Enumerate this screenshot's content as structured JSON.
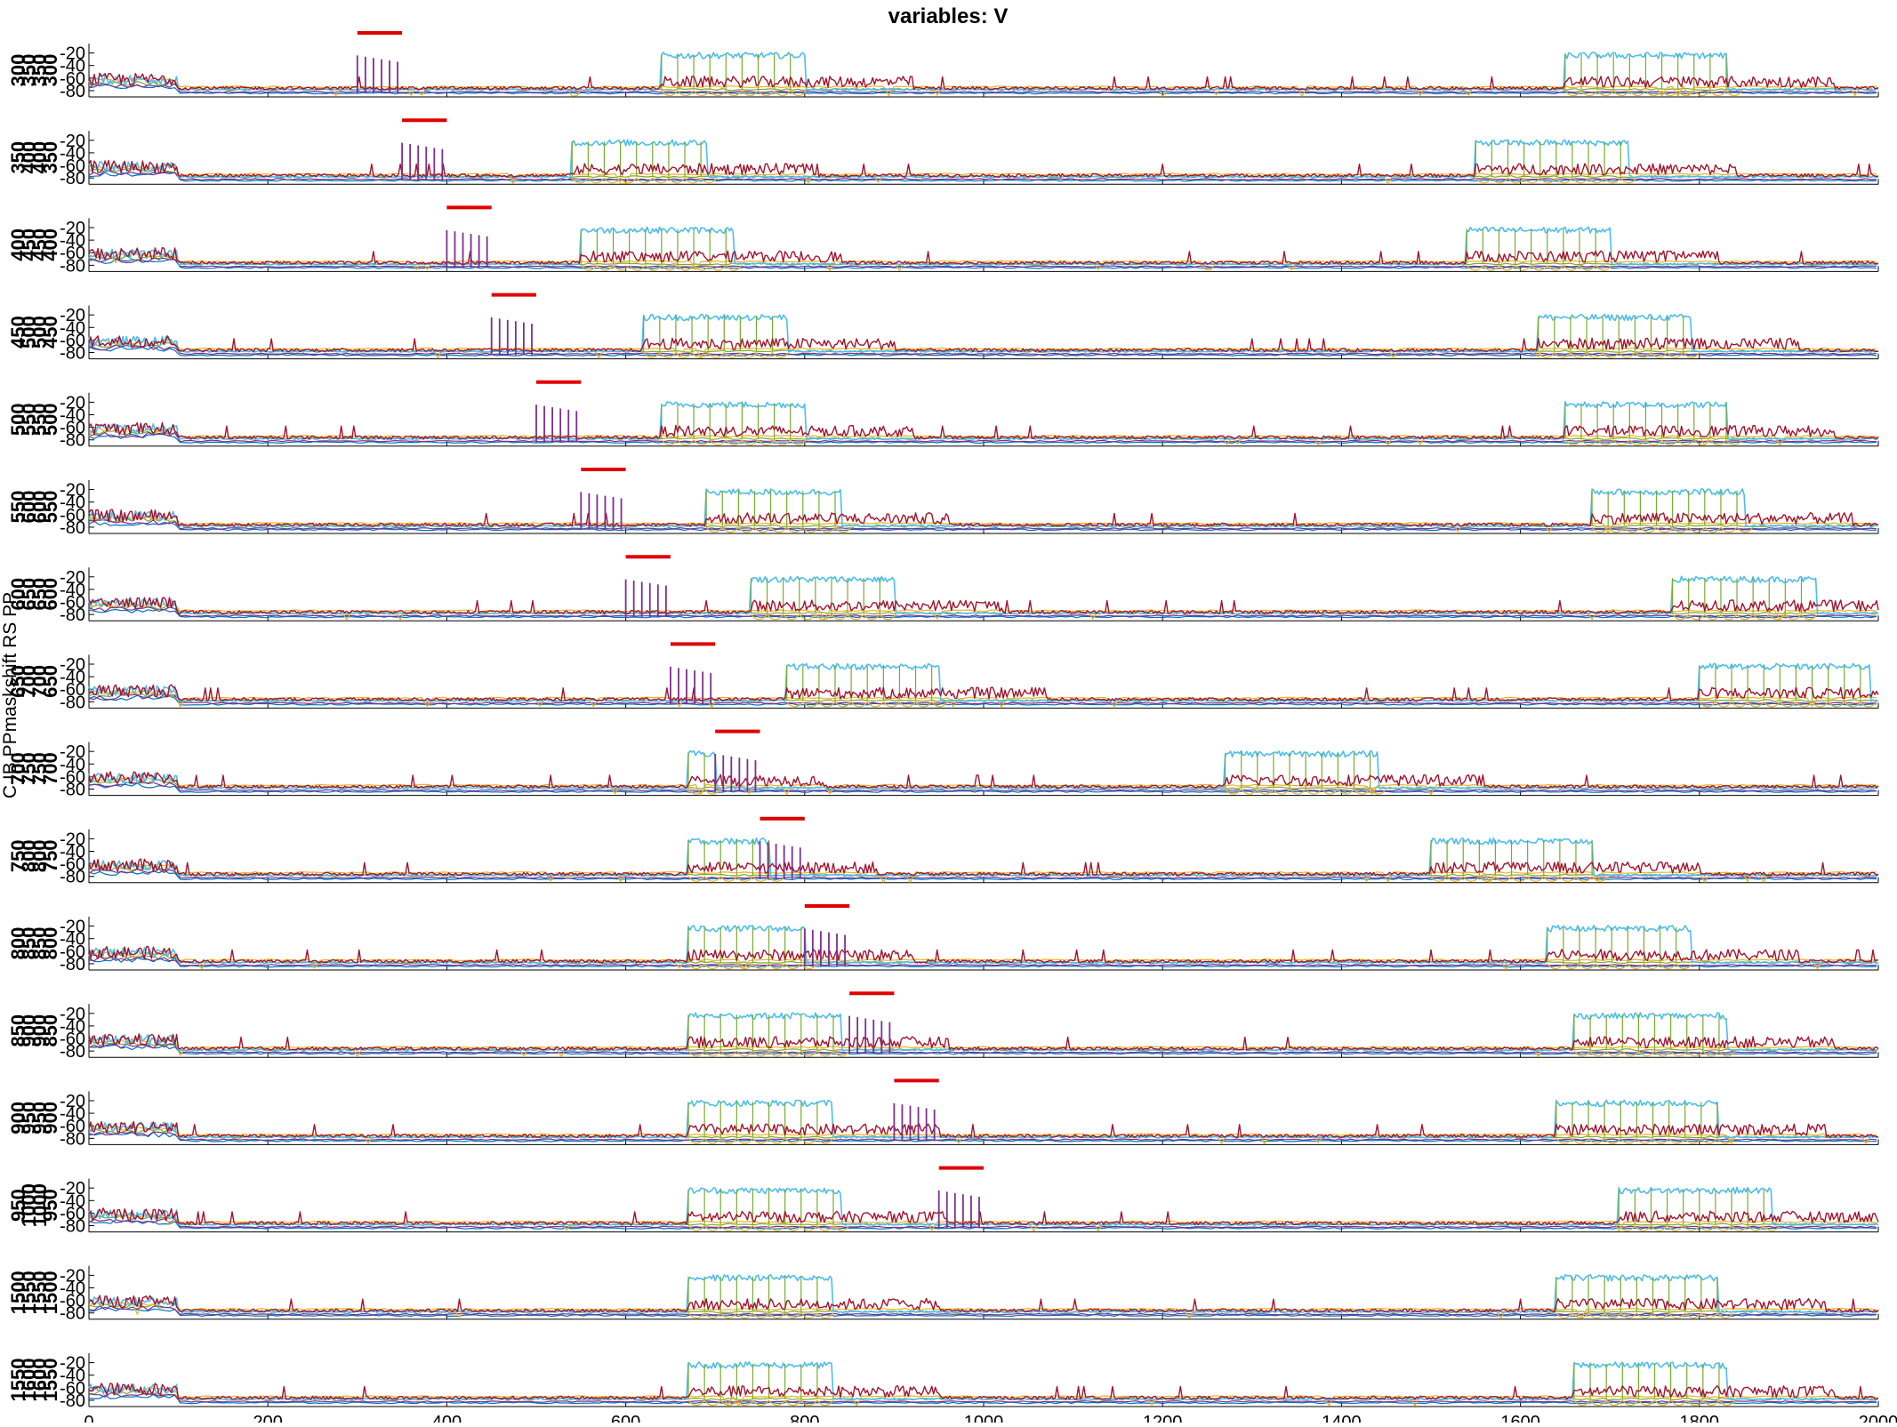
{
  "chart_data": {
    "type": "line",
    "title": "variables: V",
    "ylabel": "C IB PPmaskshift RS PP",
    "xlim": [
      0,
      2000
    ],
    "x_ticks": [
      0,
      200,
      400,
      600,
      800,
      1000,
      1200,
      1400,
      1600,
      1800,
      2000
    ],
    "x_tick_labels": [
      "0",
      "200",
      "400",
      "600",
      "800",
      "1000",
      "1200",
      "1400",
      "1600",
      "1800",
      "2000"
    ],
    "ylim": [
      -90,
      -5
    ],
    "y_ticks": [
      -20,
      -40,
      -60,
      -80
    ],
    "y_tick_labels": [
      "-20",
      "-40",
      "-60",
      "-80"
    ],
    "series_colors": {
      "cyan": "#4DBEEE",
      "crimson": "#A2142F",
      "green": "#77AC30",
      "orange": "#EDB120",
      "purple": "#7E2F8E",
      "blue": "#0072BD",
      "bar": "#E00000"
    },
    "panels": [
      {
        "left_labels": [
          "300",
          "350",
          "350",
          "300"
        ],
        "bar": [
          300,
          350
        ],
        "burst_start": 300,
        "sustained": [
          [
            640,
            800
          ],
          [
            1650,
            1830
          ]
        ]
      },
      {
        "left_labels": [
          "350",
          "400",
          "400",
          "350"
        ],
        "bar": [
          350,
          400
        ],
        "burst_start": 350,
        "sustained": [
          [
            540,
            690
          ],
          [
            1550,
            1720
          ]
        ]
      },
      {
        "left_labels": [
          "400",
          "450",
          "450",
          "400"
        ],
        "bar": [
          400,
          450
        ],
        "burst_start": 400,
        "sustained": [
          [
            550,
            720
          ],
          [
            1540,
            1700
          ]
        ]
      },
      {
        "left_labels": [
          "450",
          "500",
          "500",
          "450"
        ],
        "bar": [
          450,
          500
        ],
        "burst_start": 450,
        "sustained": [
          [
            620,
            780
          ],
          [
            1620,
            1790
          ]
        ]
      },
      {
        "left_labels": [
          "500",
          "550",
          "550",
          "500"
        ],
        "bar": [
          500,
          550
        ],
        "burst_start": 500,
        "sustained": [
          [
            640,
            800
          ],
          [
            1650,
            1830
          ]
        ]
      },
      {
        "left_labels": [
          "550",
          "600",
          "600",
          "550"
        ],
        "bar": [
          550,
          600
        ],
        "burst_start": 550,
        "sustained": [
          [
            690,
            840
          ],
          [
            1680,
            1850
          ]
        ]
      },
      {
        "left_labels": [
          "600",
          "650",
          "650",
          "600"
        ],
        "bar": [
          600,
          650
        ],
        "burst_start": 600,
        "sustained": [
          [
            740,
            900
          ],
          [
            1770,
            1930
          ]
        ]
      },
      {
        "left_labels": [
          "650",
          "700",
          "700",
          "650"
        ],
        "bar": [
          650,
          700
        ],
        "burst_start": 650,
        "sustained": [
          [
            780,
            950
          ],
          [
            1800,
            1990
          ]
        ]
      },
      {
        "left_labels": [
          "700",
          "750",
          "750",
          "700"
        ],
        "bar": [
          700,
          750
        ],
        "burst_start": 700,
        "sustained": [
          [
            670,
            700
          ],
          [
            1270,
            1440
          ]
        ]
      },
      {
        "left_labels": [
          "750",
          "800",
          "800",
          "750"
        ],
        "bar": [
          750,
          800
        ],
        "burst_start": 750,
        "sustained": [
          [
            670,
            760
          ],
          [
            1500,
            1680
          ]
        ]
      },
      {
        "left_labels": [
          "800",
          "850",
          "850",
          "800"
        ],
        "bar": [
          800,
          850
        ],
        "burst_start": 800,
        "sustained": [
          [
            670,
            800
          ],
          [
            1630,
            1790
          ]
        ]
      },
      {
        "left_labels": [
          "850",
          "900",
          "900",
          "850"
        ],
        "bar": [
          850,
          900
        ],
        "burst_start": 850,
        "sustained": [
          [
            670,
            840
          ],
          [
            1660,
            1830
          ]
        ]
      },
      {
        "left_labels": [
          "900",
          "950",
          "950",
          "900"
        ],
        "bar": [
          900,
          950
        ],
        "burst_start": 900,
        "sustained": [
          [
            670,
            830
          ],
          [
            1640,
            1820
          ]
        ]
      },
      {
        "left_labels": [
          "950",
          "1000",
          "1000",
          "950"
        ],
        "bar": [
          950,
          1000
        ],
        "burst_start": 950,
        "sustained": [
          [
            670,
            840
          ],
          [
            1710,
            1880
          ]
        ]
      },
      {
        "left_labels": [
          "1500",
          "1550",
          "1550",
          "1500"
        ],
        "bar": null,
        "burst_start": null,
        "sustained": [
          [
            670,
            830
          ],
          [
            1640,
            1820
          ]
        ]
      },
      {
        "left_labels": [
          "1550",
          "1600",
          "1600",
          "1550"
        ],
        "bar": null,
        "burst_start": null,
        "sustained": [
          [
            670,
            830
          ],
          [
            1660,
            1830
          ]
        ]
      }
    ]
  }
}
